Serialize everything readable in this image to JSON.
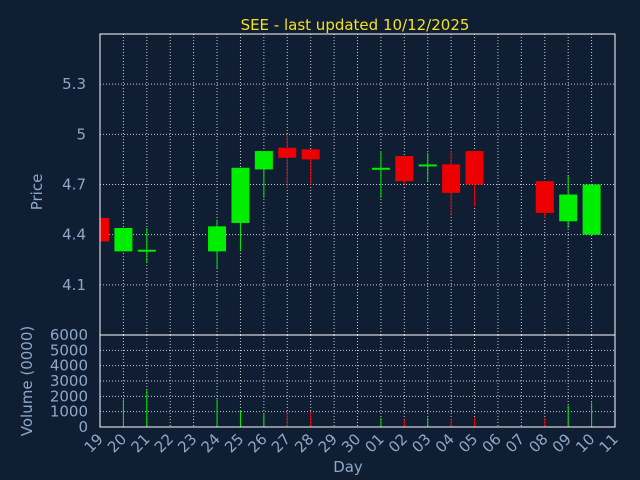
{
  "chart_data": {
    "type": "candlestick",
    "title": "SEE - last updated 10/12/2025",
    "xlabel": "Day",
    "price_ylabel": "Price",
    "volume_ylabel": "Volume (0000)",
    "price_ylim": [
      3.8,
      5.6
    ],
    "price_yticks": [
      4.1,
      4.4,
      4.7,
      5,
      5.3
    ],
    "volume_ylim": [
      0,
      6000
    ],
    "volume_yticks": [
      0,
      1000,
      2000,
      3000,
      4000,
      5000,
      6000
    ],
    "x_ticks": [
      "19",
      "20",
      "21",
      "22",
      "23",
      "24",
      "25",
      "26",
      "27",
      "28",
      "29",
      "30",
      "01",
      "02",
      "03",
      "04",
      "05",
      "06",
      "07",
      "08",
      "09",
      "10",
      "11"
    ],
    "grid": true,
    "colors": {
      "up": "#00ee00",
      "down": "#ee0000",
      "background": "#0f1e33",
      "grid": "#cccccc",
      "title": "#f4e21f",
      "axis": "#8ea8c6"
    },
    "candles": [
      {
        "day": "19",
        "open": 4.5,
        "close": 4.36,
        "high": 4.5,
        "low": 4.36,
        "volume": 0
      },
      {
        "day": "20",
        "open": 4.3,
        "close": 4.44,
        "high": 4.44,
        "low": 4.3,
        "volume": 1800
      },
      {
        "day": "21",
        "open": 4.3,
        "close": 4.31,
        "high": 4.44,
        "low": 4.23,
        "volume": 2400
      },
      {
        "day": "24",
        "open": 4.3,
        "close": 4.45,
        "high": 4.49,
        "low": 4.2,
        "volume": 1800
      },
      {
        "day": "25",
        "open": 4.47,
        "close": 4.8,
        "high": 4.8,
        "low": 4.3,
        "volume": 1100
      },
      {
        "day": "26",
        "open": 4.79,
        "close": 4.9,
        "high": 4.9,
        "low": 4.62,
        "volume": 900
      },
      {
        "day": "27",
        "open": 4.92,
        "close": 4.86,
        "high": 5.0,
        "low": 4.68,
        "volume": 1000
      },
      {
        "day": "28",
        "open": 4.91,
        "close": 4.85,
        "high": 4.91,
        "low": 4.7,
        "volume": 1000
      },
      {
        "day": "01",
        "open": 4.79,
        "close": 4.8,
        "high": 4.9,
        "low": 4.62,
        "volume": 600
      },
      {
        "day": "02",
        "open": 4.87,
        "close": 4.72,
        "high": 4.87,
        "low": 4.7,
        "volume": 500
      },
      {
        "day": "03",
        "open": 4.81,
        "close": 4.82,
        "high": 4.89,
        "low": 4.72,
        "volume": 600
      },
      {
        "day": "04",
        "open": 4.82,
        "close": 4.65,
        "high": 4.9,
        "low": 4.52,
        "volume": 500
      },
      {
        "day": "05",
        "open": 4.9,
        "close": 4.7,
        "high": 4.9,
        "low": 4.57,
        "volume": 600
      },
      {
        "day": "08",
        "open": 4.72,
        "close": 4.53,
        "high": 4.72,
        "low": 4.5,
        "volume": 600
      },
      {
        "day": "09",
        "open": 4.48,
        "close": 4.64,
        "high": 4.75,
        "low": 4.44,
        "volume": 1400
      },
      {
        "day": "10",
        "open": 4.4,
        "close": 4.7,
        "high": 4.7,
        "low": 4.4,
        "volume": 1600
      }
    ]
  }
}
